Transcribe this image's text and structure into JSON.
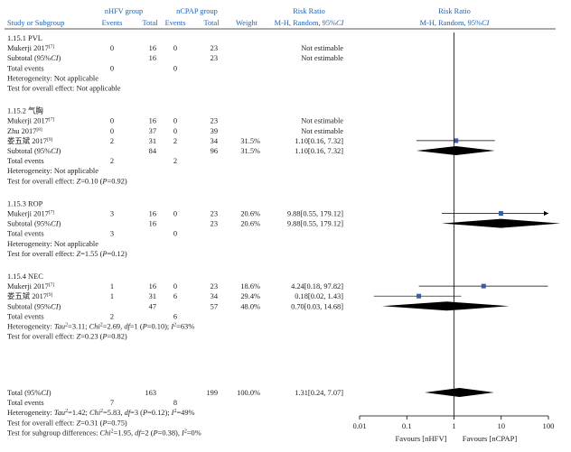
{
  "colors": {
    "header": "#1f63b4",
    "marker": "#3b5aa8",
    "diamond": "#000000",
    "line": "#000000"
  },
  "header": {
    "study": "Study or Subgroup",
    "group1": "nHFV group",
    "group2": "nCPAP group",
    "events": "Events",
    "total": "Total",
    "weight": "Weight",
    "rr_title": "Risk Ratio",
    "rr_method_plain": "M-H, Random, 95%",
    "ci_italic": "CI"
  },
  "axis": {
    "ticks": [
      "0.01",
      "0.1",
      "1",
      "10",
      "100"
    ],
    "favours_left": "Favours [nHFV]",
    "favours_right": "Favours [nCPAP]"
  },
  "chart_data": {
    "type": "forest",
    "measure": "Risk Ratio (M-H, Random, 95% CI)",
    "scale": "log",
    "xlim": [
      0.01,
      100
    ],
    "null_line": 1,
    "subgroups": [
      {
        "name": "1.15.1 PVL",
        "studies": [
          {
            "study": "Mukerji 2017",
            "ref": "[7]",
            "e1": "0",
            "n1": "16",
            "e2": "0",
            "n2": "23",
            "weight": "",
            "ci_text": "Not estimable",
            "rr": null,
            "lo": null,
            "hi": null
          }
        ],
        "subtotal": {
          "n1": "16",
          "n2": "23",
          "weight": "",
          "ci_text": "Not estimable",
          "rr": null,
          "lo": null,
          "hi": null
        },
        "total_events": {
          "e1": "0",
          "e2": "0"
        },
        "heterogeneity": "Heterogeneity: Not applicable",
        "overall": "Test for overall effect: Not applicable"
      },
      {
        "name": "1.15.2 气胸",
        "studies": [
          {
            "study": "Mukerji 2017",
            "ref": "[7]",
            "e1": "0",
            "n1": "16",
            "e2": "0",
            "n2": "23",
            "weight": "",
            "ci_text": "Not estimable",
            "rr": null,
            "lo": null,
            "hi": null
          },
          {
            "study": "Zhu 2017",
            "ref": "[8]",
            "e1": "0",
            "n1": "37",
            "e2": "0",
            "n2": "39",
            "weight": "",
            "ci_text": "Not estimable",
            "rr": null,
            "lo": null,
            "hi": null
          },
          {
            "study": "娄五斌 2017",
            "ref": "[9]",
            "e1": "2",
            "n1": "31",
            "e2": "2",
            "n2": "34",
            "weight": "31.5%",
            "ci_text": "1.10[0.16, 7.32]",
            "rr": 1.1,
            "lo": 0.16,
            "hi": 7.32
          }
        ],
        "subtotal": {
          "n1": "84",
          "n2": "96",
          "weight": "31.5%",
          "ci_text": "1.10[0.16, 7.32]",
          "rr": 1.1,
          "lo": 0.16,
          "hi": 7.32
        },
        "total_events": {
          "e1": "2",
          "e2": "2"
        },
        "heterogeneity": "Heterogeneity: Not applicable",
        "overall": "Test for overall effect: Z=0.10 (P=0.92)"
      },
      {
        "name": "1.15.3 ROP",
        "studies": [
          {
            "study": "Mukerji 2017",
            "ref": "[7]",
            "e1": "3",
            "n1": "16",
            "e2": "0",
            "n2": "23",
            "weight": "20.6%",
            "ci_text": "9.88[0.55, 179.12]",
            "rr": 9.88,
            "lo": 0.55,
            "hi": 179.12
          }
        ],
        "subtotal": {
          "n1": "16",
          "n2": "23",
          "weight": "20.6%",
          "ci_text": "9.88[0.55, 179.12]",
          "rr": 9.88,
          "lo": 0.55,
          "hi": 179.12
        },
        "total_events": {
          "e1": "3",
          "e2": "0"
        },
        "heterogeneity": "Heterogeneity: Not applicable",
        "overall": "Test for overall effect: Z=1.55 (P=0.12)"
      },
      {
        "name": "1.15.4 NEC",
        "studies": [
          {
            "study": "Mukerji 2017",
            "ref": "[7]",
            "e1": "1",
            "n1": "16",
            "e2": "0",
            "n2": "23",
            "weight": "18.6%",
            "ci_text": "4.24[0.18, 97.82]",
            "rr": 4.24,
            "lo": 0.18,
            "hi": 97.82
          },
          {
            "study": "娄五斌 2017",
            "ref": "[9]",
            "e1": "1",
            "n1": "31",
            "e2": "6",
            "n2": "34",
            "weight": "29.4%",
            "ci_text": "0.18[0.02, 1.43]",
            "rr": 0.18,
            "lo": 0.02,
            "hi": 1.43
          }
        ],
        "subtotal": {
          "n1": "47",
          "n2": "57",
          "weight": "48.0%",
          "ci_text": "0.70[0.03, 14.68]",
          "rr": 0.7,
          "lo": 0.03,
          "hi": 14.68
        },
        "total_events": {
          "e1": "2",
          "e2": "6"
        },
        "heterogeneity": "Heterogeneity: Tau²=3.11; Chi²=2.69, df=1 (P=0.10); I²=63%",
        "overall": "Test for overall effect: Z=0.23 (P=0.82)"
      }
    ],
    "overall": {
      "label": "Total (95%CI)",
      "n1": "163",
      "n2": "199",
      "weight": "100.0%",
      "ci_text": "1.31[0.24, 7.07]",
      "rr": 1.31,
      "lo": 0.24,
      "hi": 7.07,
      "total_events": {
        "e1": "7",
        "e2": "8"
      },
      "heterogeneity": "Heterogeneity: Tau²=1.42; Chi²=5.83, df=3 (P=0.12); I²=49%",
      "overall": "Test for overall effect: Z=0.31 (P=0.75)",
      "subgroup_diff": "Test for subgroup differences: Chi²=1.95, df=2 (P=0.38), I²=0%"
    }
  }
}
